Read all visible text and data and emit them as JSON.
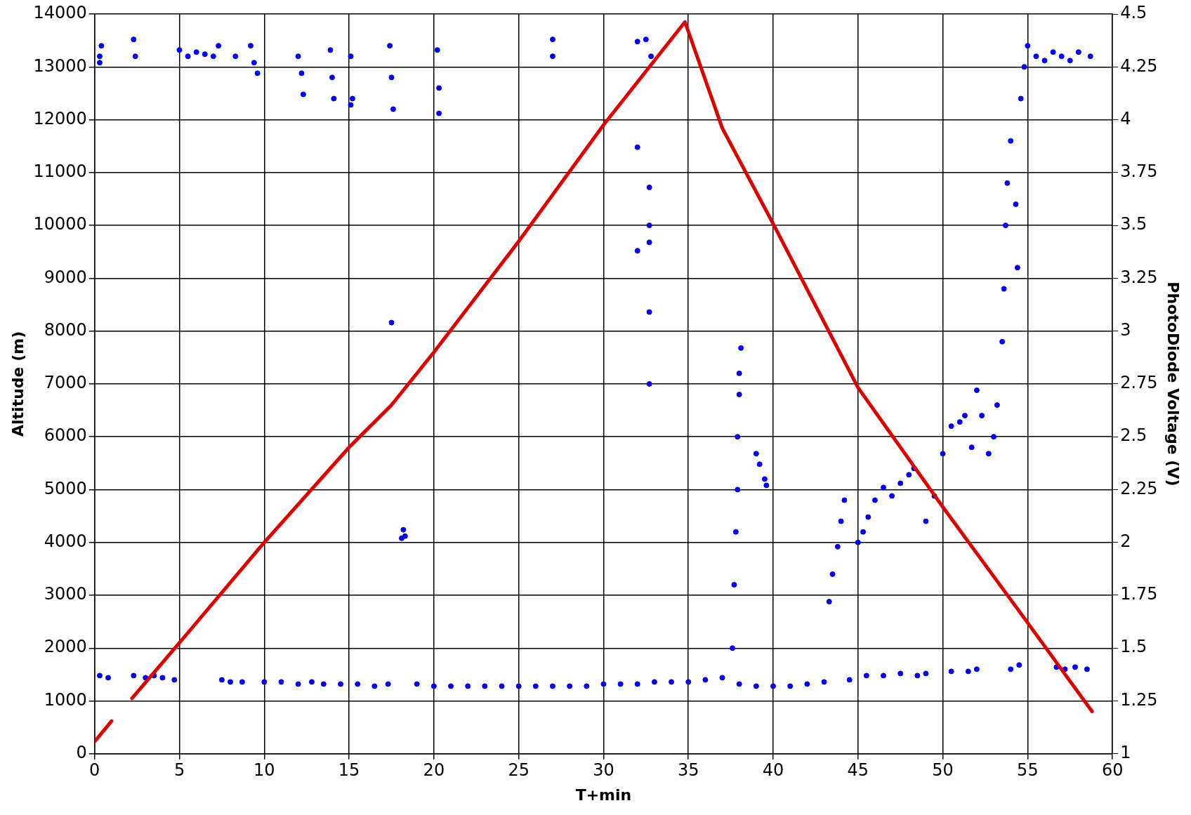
{
  "chart_data": {
    "type": "scatter",
    "xlabel": "T+min",
    "ylabel": "Altitude (m)",
    "y2label": "PhotoDiode Voltage (V)",
    "xlim": [
      0,
      60
    ],
    "xticks": [
      0,
      5,
      10,
      15,
      20,
      25,
      30,
      35,
      40,
      45,
      50,
      55,
      60
    ],
    "ylim": [
      0,
      14000
    ],
    "yticks": [
      0,
      1000,
      2000,
      3000,
      4000,
      5000,
      6000,
      7000,
      8000,
      9000,
      10000,
      11000,
      12000,
      13000,
      14000
    ],
    "y2lim": [
      1,
      4.5
    ],
    "y2ticks": [
      1,
      1.25,
      1.5,
      1.75,
      2,
      2.25,
      2.5,
      2.75,
      3,
      3.25,
      3.5,
      3.75,
      4,
      4.25,
      4.5
    ],
    "grid": true,
    "legend": false,
    "marker": "circle",
    "series": [
      {
        "type": "line",
        "color": "#dd0000",
        "line_style": "solid",
        "marker": "none",
        "x": [
          0,
          1,
          1.5,
          2.2,
          5,
          10,
          15,
          17.5,
          20,
          25,
          30,
          34.8,
          37,
          40,
          45,
          50,
          55,
          58.8
        ],
        "values": [
          230,
          620,
          null,
          1050,
          2100,
          4000,
          5800,
          6600,
          7600,
          9700,
          11900,
          13850,
          11840,
          10030,
          6930,
          4670,
          2480,
          800
        ]
      },
      {
        "axis": "y2",
        "color": "#0000ee",
        "x": [
          0.3,
          0.4,
          0.3,
          2.3,
          2.4,
          5,
          5.5,
          6,
          6.5,
          7,
          7.3,
          8.3,
          9.2,
          9.4,
          9.6,
          12,
          12.2,
          12.3,
          13.9,
          14,
          14.1,
          15.1,
          15.2,
          15.1,
          17.4,
          17.5,
          17.6,
          20.2,
          20.3,
          20.3,
          27,
          27,
          32,
          32.5,
          32.8,
          32,
          32,
          32.7,
          32.7,
          32.7,
          32.7,
          32.7,
          17.5,
          18.1,
          18.2,
          18.3,
          37.6,
          37.7,
          37.8,
          37.9,
          37.9,
          38,
          38,
          38.1,
          39,
          39.2,
          39.5,
          39.6,
          43.3,
          43.5,
          43.8,
          44,
          44.2,
          45,
          45.3,
          45.6,
          46,
          46.5,
          47,
          47.5,
          48,
          48.3,
          49,
          49.5,
          50,
          50.5,
          51,
          51.3,
          51.7,
          52,
          52.3,
          52.7,
          53,
          53.2,
          53.5,
          53.6,
          53.7,
          53.8,
          54,
          54.3,
          54.4,
          54.6,
          54.8,
          55,
          55.5,
          56,
          56.5,
          57,
          57.5,
          58,
          58.7,
          0.3,
          0.8,
          2.3,
          3,
          3.5,
          4,
          4.7,
          7.5,
          8,
          8.7,
          10,
          11,
          12,
          12.8,
          13.5,
          14.5,
          15.5,
          16.5,
          17.3,
          19,
          20,
          21,
          22,
          23,
          24,
          25,
          26,
          27,
          28,
          29,
          30,
          31,
          32,
          33,
          34,
          35,
          36,
          37,
          38,
          39,
          40,
          41,
          42,
          43,
          44.5,
          45.5,
          46.5,
          47.5,
          48.5,
          49,
          50.5,
          51.5,
          52,
          54,
          54.5,
          56.7,
          57.2,
          57.8,
          58.5
        ],
        "values": [
          4.3,
          4.35,
          4.27,
          4.38,
          4.3,
          4.33,
          4.3,
          4.32,
          4.31,
          4.3,
          4.35,
          4.3,
          4.35,
          4.27,
          4.22,
          4.3,
          4.22,
          4.12,
          4.33,
          4.2,
          4.1,
          4.3,
          4.1,
          4.07,
          4.35,
          4.2,
          4.05,
          4.33,
          4.15,
          4.03,
          4.38,
          4.3,
          4.37,
          4.38,
          4.3,
          3.87,
          3.38,
          3.68,
          3.5,
          3.42,
          3.09,
          2.75,
          3.04,
          2.02,
          2.06,
          2.03,
          1.5,
          1.8,
          2.05,
          2.25,
          2.5,
          2.7,
          2.8,
          2.92,
          2.42,
          2.37,
          2.3,
          2.27,
          1.72,
          1.85,
          1.98,
          2.1,
          2.2,
          2,
          2.05,
          2.12,
          2.2,
          2.26,
          2.22,
          2.28,
          2.32,
          2.35,
          2.1,
          2.22,
          2.42,
          2.55,
          2.57,
          2.6,
          2.45,
          2.72,
          2.6,
          2.42,
          2.5,
          2.65,
          2.95,
          3.2,
          3.5,
          3.7,
          3.9,
          3.6,
          3.3,
          4.1,
          4.25,
          4.35,
          4.3,
          4.28,
          4.32,
          4.3,
          4.28,
          4.32,
          4.3,
          1.37,
          1.36,
          1.37,
          1.36,
          1.37,
          1.36,
          1.35,
          1.35,
          1.34,
          1.34,
          1.34,
          1.34,
          1.33,
          1.34,
          1.33,
          1.33,
          1.33,
          1.32,
          1.33,
          1.33,
          1.32,
          1.32,
          1.32,
          1.32,
          1.32,
          1.32,
          1.32,
          1.32,
          1.32,
          1.32,
          1.33,
          1.33,
          1.33,
          1.34,
          1.34,
          1.34,
          1.35,
          1.36,
          1.33,
          1.32,
          1.32,
          1.32,
          1.33,
          1.34,
          1.35,
          1.37,
          1.37,
          1.38,
          1.37,
          1.38,
          1.39,
          1.39,
          1.4,
          1.4,
          1.42,
          1.41,
          1.4,
          1.41,
          1.4
        ]
      }
    ]
  }
}
